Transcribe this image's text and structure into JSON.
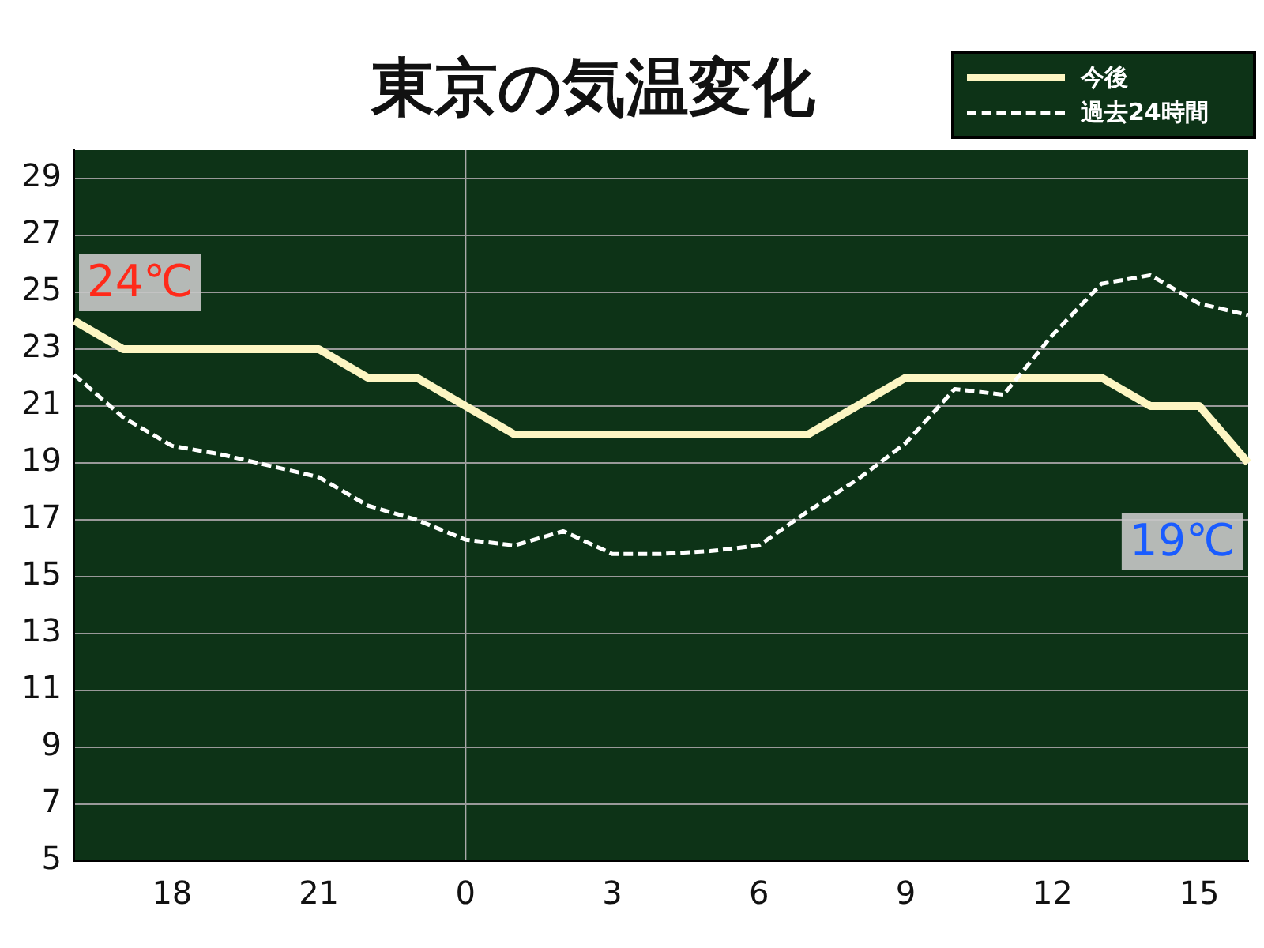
{
  "chart_data": {
    "type": "line",
    "title": "東京の気温変化",
    "categories": [
      null,
      null,
      "18",
      null,
      null,
      "21",
      null,
      null,
      "0",
      null,
      null,
      "3",
      null,
      null,
      "6",
      null,
      null,
      "9",
      null,
      null,
      "12",
      null,
      null,
      "15",
      null
    ],
    "ylim": [
      5,
      30
    ],
    "yticks": [
      5,
      7,
      9,
      11,
      13,
      15,
      17,
      19,
      21,
      23,
      25,
      27,
      29
    ],
    "series": [
      {
        "name": "今後",
        "color": "#fdf6c3",
        "line_style": "solid",
        "values": [
          24,
          23,
          23,
          23,
          23,
          23,
          22,
          22,
          21,
          20,
          20,
          20,
          20,
          20,
          20,
          20,
          21,
          22,
          22,
          22,
          22,
          22,
          21,
          21,
          19
        ]
      },
      {
        "name": "過去24時間",
        "color": "#ffffff",
        "line_style": "dashed",
        "values": [
          22.1,
          20.6,
          19.6,
          19.3,
          18.9,
          18.5,
          17.5,
          17.0,
          16.3,
          16.1,
          16.6,
          15.8,
          15.8,
          15.9,
          16.1,
          17.3,
          18.4,
          19.7,
          21.6,
          21.4,
          23.5,
          25.3,
          25.6,
          24.6,
          24.2
        ]
      }
    ],
    "ref_lines": [
      {
        "axis": "x",
        "value": "0",
        "color": "#aaaaaa"
      }
    ],
    "annotations": [
      "24℃",
      "19℃"
    ],
    "grid": "y",
    "legend": "top right",
    "marker": "none"
  }
}
